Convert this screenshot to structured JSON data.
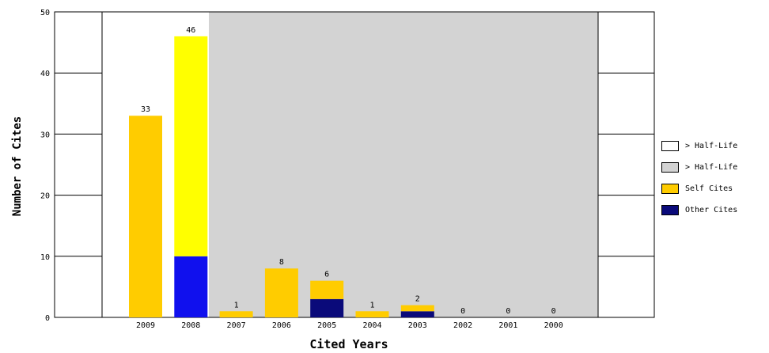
{
  "chart_data": {
    "type": "bar",
    "xlabel": "Cited Years",
    "ylabel": "Number of Cites",
    "ylim": [
      0,
      50
    ],
    "yticks": [
      0,
      10,
      20,
      30,
      40,
      50
    ],
    "categories": [
      "2009",
      "2008",
      "2007",
      "2006",
      "2005",
      "2004",
      "2003",
      "2002",
      "2001",
      "2000"
    ],
    "totals": [
      33,
      46,
      1,
      8,
      6,
      1,
      2,
      0,
      0,
      0
    ],
    "series": [
      {
        "name": "Other Cites",
        "values": [
          0,
          10,
          0,
          0,
          3,
          0,
          1,
          0,
          0,
          0
        ],
        "color": "#0a0a7a"
      },
      {
        "name": "Self Cites",
        "values": [
          33,
          36,
          1,
          8,
          3,
          1,
          1,
          0,
          0,
          0
        ],
        "color": "#ffcc00"
      }
    ],
    "highlight_color_2008": {
      "self": "#ffff00",
      "other": "#1010ee"
    },
    "half_life_shading": {
      "before": "#ffffff",
      "after": "#d3d3d3",
      "split_between": [
        "2009",
        "2008"
      ]
    },
    "grid": false,
    "legend_position": "right"
  },
  "legend": {
    "items": [
      {
        "label": "> Half-Life",
        "color": "#ffffff"
      },
      {
        "label": "> Half-Life",
        "color": "#d3d3d3"
      },
      {
        "label": "Self Cites",
        "color": "#ffcc00"
      },
      {
        "label": "Other Cites",
        "color": "#0a0a7a"
      }
    ]
  }
}
